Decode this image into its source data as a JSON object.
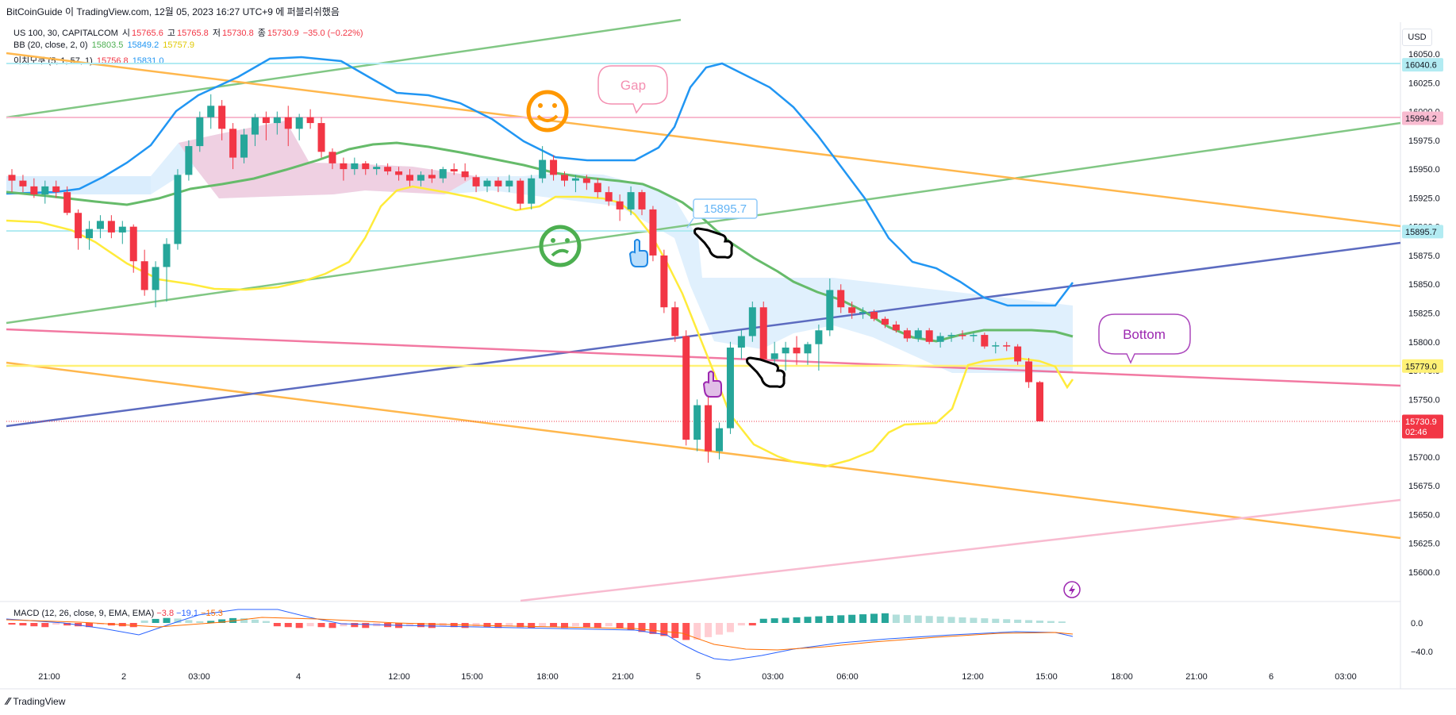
{
  "header": {
    "text": "BitCoinGuide 이 TradingView.com, 12월 05, 2023 16:27 UTC+9 에 퍼블리쉬했음"
  },
  "legend": {
    "symbol": "US 100, 30, CAPITALCOM",
    "o_label": "시",
    "o": "15765.6",
    "h_label": "고",
    "h": "15765.8",
    "l_label": "저",
    "l": "15730.8",
    "c_label": "종",
    "c": "15730.9",
    "change": "−35.0 (−0.22%)",
    "bb_name": "BB (20, close, 2, 0)",
    "bb_mid": "15803.5",
    "bb_up": "15849.2",
    "bb_low": "15757.9",
    "ichi_name": "이치모쿠 (5, 1, 57, 1)",
    "ichi_a": "15756.8",
    "ichi_b": "15831.0"
  },
  "macd_legend": {
    "name": "MACD (12, 26, close, 9, EMA, EMA)",
    "hist": "−3.8",
    "macd": "−19.1",
    "signal": "−15.3"
  },
  "currency": "USD",
  "footer": {
    "brand": "TradingView"
  },
  "annotations": {
    "gap": "Gap",
    "bottom": "Bottom",
    "marker": "15895.7"
  },
  "colors": {
    "up": "#26a69a",
    "down": "#f23645",
    "bb_mid": "#4caf50",
    "bb_up": "#2196f3",
    "bb_low": "#ffeb3b",
    "accent_orange": "#ff9800"
  },
  "chart_data": {
    "type": "candlestick",
    "symbol": "US 100",
    "interval": "30",
    "ylim": [
      15585,
      16060
    ],
    "y_ticks": [
      "16050.0",
      "16025.0",
      "16000.0",
      "15975.0",
      "15950.0",
      "15925.0",
      "15900.0",
      "15875.0",
      "15850.0",
      "15825.0",
      "15800.0",
      "15775.0",
      "15750.0",
      "15725.0",
      "15700.0",
      "15675.0",
      "15650.0",
      "15625.0",
      "15600.0"
    ],
    "x_ticks": [
      "21:00",
      "2",
      "03:00",
      "4",
      "12:00",
      "15:00",
      "18:00",
      "21:00",
      "5",
      "03:00",
      "06:00",
      "12:00",
      "15:00",
      "18:00",
      "21:00",
      "6",
      "03:00"
    ],
    "price_labels": [
      {
        "value": 16040.6,
        "text": "16040.6",
        "bg": "#b2ebf2"
      },
      {
        "value": 15994.2,
        "text": "15994.2",
        "bg": "#f8bbd0"
      },
      {
        "value": 15895.7,
        "text": "15895.7",
        "bg": "#b2ebf2"
      },
      {
        "value": 15779.0,
        "text": "15779.0",
        "bg": "#fff176"
      },
      {
        "value": 15730.9,
        "text": "15730.9",
        "sub": "02:46",
        "bg": "#f23645"
      }
    ],
    "candles": [
      {
        "o": 15945,
        "h": 15950,
        "l": 15930,
        "c": 15940
      },
      {
        "o": 15940,
        "h": 15945,
        "l": 15930,
        "c": 15935
      },
      {
        "o": 15935,
        "h": 15942,
        "l": 15925,
        "c": 15928
      },
      {
        "o": 15928,
        "h": 15940,
        "l": 15920,
        "c": 15935
      },
      {
        "o": 15935,
        "h": 15940,
        "l": 15925,
        "c": 15930
      },
      {
        "o": 15930,
        "h": 15935,
        "l": 15910,
        "c": 15912
      },
      {
        "o": 15912,
        "h": 15915,
        "l": 15880,
        "c": 15890
      },
      {
        "o": 15890,
        "h": 15905,
        "l": 15880,
        "c": 15898
      },
      {
        "o": 15898,
        "h": 15910,
        "l": 15890,
        "c": 15905
      },
      {
        "o": 15905,
        "h": 15910,
        "l": 15890,
        "c": 15895
      },
      {
        "o": 15895,
        "h": 15905,
        "l": 15885,
        "c": 15900
      },
      {
        "o": 15900,
        "h": 15902,
        "l": 15860,
        "c": 15870
      },
      {
        "o": 15870,
        "h": 15880,
        "l": 15840,
        "c": 15845
      },
      {
        "o": 15845,
        "h": 15870,
        "l": 15830,
        "c": 15865
      },
      {
        "o": 15865,
        "h": 15890,
        "l": 15835,
        "c": 15885
      },
      {
        "o": 15885,
        "h": 15950,
        "l": 15880,
        "c": 15945
      },
      {
        "o": 15945,
        "h": 15975,
        "l": 15940,
        "c": 15970
      },
      {
        "o": 15970,
        "h": 16000,
        "l": 15965,
        "c": 15995
      },
      {
        "o": 15995,
        "h": 16015,
        "l": 15985,
        "c": 16005
      },
      {
        "o": 16005,
        "h": 16010,
        "l": 15975,
        "c": 15985
      },
      {
        "o": 15985,
        "h": 15990,
        "l": 15950,
        "c": 15960
      },
      {
        "o": 15960,
        "h": 15985,
        "l": 15955,
        "c": 15980
      },
      {
        "o": 15980,
        "h": 15998,
        "l": 15970,
        "c": 15995
      },
      {
        "o": 15995,
        "h": 16000,
        "l": 15975,
        "c": 15990
      },
      {
        "o": 15990,
        "h": 16000,
        "l": 15980,
        "c": 15995
      },
      {
        "o": 15995,
        "h": 16005,
        "l": 15970,
        "c": 15985
      },
      {
        "o": 15985,
        "h": 15998,
        "l": 15975,
        "c": 15995
      },
      {
        "o": 15995,
        "h": 16002,
        "l": 15985,
        "c": 15990
      },
      {
        "o": 15990,
        "h": 15995,
        "l": 15960,
        "c": 15965
      },
      {
        "o": 15965,
        "h": 15968,
        "l": 15950,
        "c": 15955
      },
      {
        "o": 15955,
        "h": 15960,
        "l": 15940,
        "c": 15950
      },
      {
        "o": 15950,
        "h": 15960,
        "l": 15945,
        "c": 15955
      },
      {
        "o": 15955,
        "h": 15957,
        "l": 15945,
        "c": 15950
      },
      {
        "o": 15950,
        "h": 15955,
        "l": 15945,
        "c": 15952
      },
      {
        "o": 15952,
        "h": 15955,
        "l": 15945,
        "c": 15948
      },
      {
        "o": 15948,
        "h": 15952,
        "l": 15940,
        "c": 15945
      },
      {
        "o": 15945,
        "h": 15950,
        "l": 15935,
        "c": 15940
      },
      {
        "o": 15940,
        "h": 15948,
        "l": 15935,
        "c": 15945
      },
      {
        "o": 15945,
        "h": 15950,
        "l": 15938,
        "c": 15942
      },
      {
        "o": 15942,
        "h": 15952,
        "l": 15938,
        "c": 15950
      },
      {
        "o": 15950,
        "h": 15955,
        "l": 15945,
        "c": 15948
      },
      {
        "o": 15948,
        "h": 15955,
        "l": 15940,
        "c": 15943
      },
      {
        "o": 15943,
        "h": 15945,
        "l": 15930,
        "c": 15935
      },
      {
        "o": 15935,
        "h": 15942,
        "l": 15930,
        "c": 15940
      },
      {
        "o": 15940,
        "h": 15943,
        "l": 15930,
        "c": 15935
      },
      {
        "o": 15935,
        "h": 15945,
        "l": 15930,
        "c": 15940
      },
      {
        "o": 15940,
        "h": 15942,
        "l": 15915,
        "c": 15920
      },
      {
        "o": 15920,
        "h": 15945,
        "l": 15915,
        "c": 15942
      },
      {
        "o": 15942,
        "h": 15970,
        "l": 15938,
        "c": 15958
      },
      {
        "o": 15958,
        "h": 15962,
        "l": 15940,
        "c": 15945
      },
      {
        "o": 15945,
        "h": 15948,
        "l": 15935,
        "c": 15940
      },
      {
        "o": 15940,
        "h": 15945,
        "l": 15930,
        "c": 15942
      },
      {
        "o": 15942,
        "h": 15945,
        "l": 15932,
        "c": 15938
      },
      {
        "o": 15938,
        "h": 15942,
        "l": 15925,
        "c": 15930
      },
      {
        "o": 15930,
        "h": 15935,
        "l": 15918,
        "c": 15922
      },
      {
        "o": 15922,
        "h": 15928,
        "l": 15905,
        "c": 15915
      },
      {
        "o": 15915,
        "h": 15935,
        "l": 15910,
        "c": 15930
      },
      {
        "o": 15930,
        "h": 15932,
        "l": 15910,
        "c": 15915
      },
      {
        "o": 15915,
        "h": 15918,
        "l": 15870,
        "c": 15875
      },
      {
        "o": 15875,
        "h": 15880,
        "l": 15825,
        "c": 15830
      },
      {
        "o": 15830,
        "h": 15835,
        "l": 15800,
        "c": 15805
      },
      {
        "o": 15805,
        "h": 15810,
        "l": 15710,
        "c": 15715
      },
      {
        "o": 15715,
        "h": 15750,
        "l": 15705,
        "c": 15745
      },
      {
        "o": 15745,
        "h": 15760,
        "l": 15695,
        "c": 15705
      },
      {
        "o": 15705,
        "h": 15730,
        "l": 15698,
        "c": 15725
      },
      {
        "o": 15725,
        "h": 15800,
        "l": 15720,
        "c": 15795
      },
      {
        "o": 15795,
        "h": 15810,
        "l": 15785,
        "c": 15805
      },
      {
        "o": 15805,
        "h": 15835,
        "l": 15800,
        "c": 15830
      },
      {
        "o": 15830,
        "h": 15835,
        "l": 15780,
        "c": 15785
      },
      {
        "o": 15785,
        "h": 15800,
        "l": 15765,
        "c": 15790
      },
      {
        "o": 15790,
        "h": 15800,
        "l": 15775,
        "c": 15795
      },
      {
        "o": 15795,
        "h": 15805,
        "l": 15780,
        "c": 15790
      },
      {
        "o": 15790,
        "h": 15800,
        "l": 15780,
        "c": 15798
      },
      {
        "o": 15798,
        "h": 15815,
        "l": 15775,
        "c": 15810
      },
      {
        "o": 15810,
        "h": 15855,
        "l": 15805,
        "c": 15845
      },
      {
        "o": 15845,
        "h": 15850,
        "l": 15825,
        "c": 15830
      },
      {
        "o": 15830,
        "h": 15835,
        "l": 15820,
        "c": 15825
      },
      {
        "o": 15825,
        "h": 15830,
        "l": 15820,
        "c": 15826
      },
      {
        "o": 15826,
        "h": 15828,
        "l": 15818,
        "c": 15820
      },
      {
        "o": 15820,
        "h": 15822,
        "l": 15812,
        "c": 15815
      },
      {
        "o": 15815,
        "h": 15818,
        "l": 15808,
        "c": 15810
      },
      {
        "o": 15810,
        "h": 15812,
        "l": 15800,
        "c": 15803
      },
      {
        "o": 15803,
        "h": 15812,
        "l": 15800,
        "c": 15810
      },
      {
        "o": 15810,
        "h": 15812,
        "l": 15798,
        "c": 15800
      },
      {
        "o": 15800,
        "h": 15808,
        "l": 15795,
        "c": 15805
      },
      {
        "o": 15805,
        "h": 15808,
        "l": 15800,
        "c": 15806
      },
      {
        "o": 15806,
        "h": 15810,
        "l": 15802,
        "c": 15805
      },
      {
        "o": 15805,
        "h": 15808,
        "l": 15800,
        "c": 15806
      },
      {
        "o": 15806,
        "h": 15808,
        "l": 15794,
        "c": 15796
      },
      {
        "o": 15796,
        "h": 15800,
        "l": 15790,
        "c": 15797
      },
      {
        "o": 15797,
        "h": 15800,
        "l": 15792,
        "c": 15796
      },
      {
        "o": 15796,
        "h": 15798,
        "l": 15780,
        "c": 15783
      },
      {
        "o": 15783,
        "h": 15786,
        "l": 15760,
        "c": 15765
      },
      {
        "o": 15765,
        "h": 15766,
        "l": 15731,
        "c": 15731
      }
    ]
  }
}
